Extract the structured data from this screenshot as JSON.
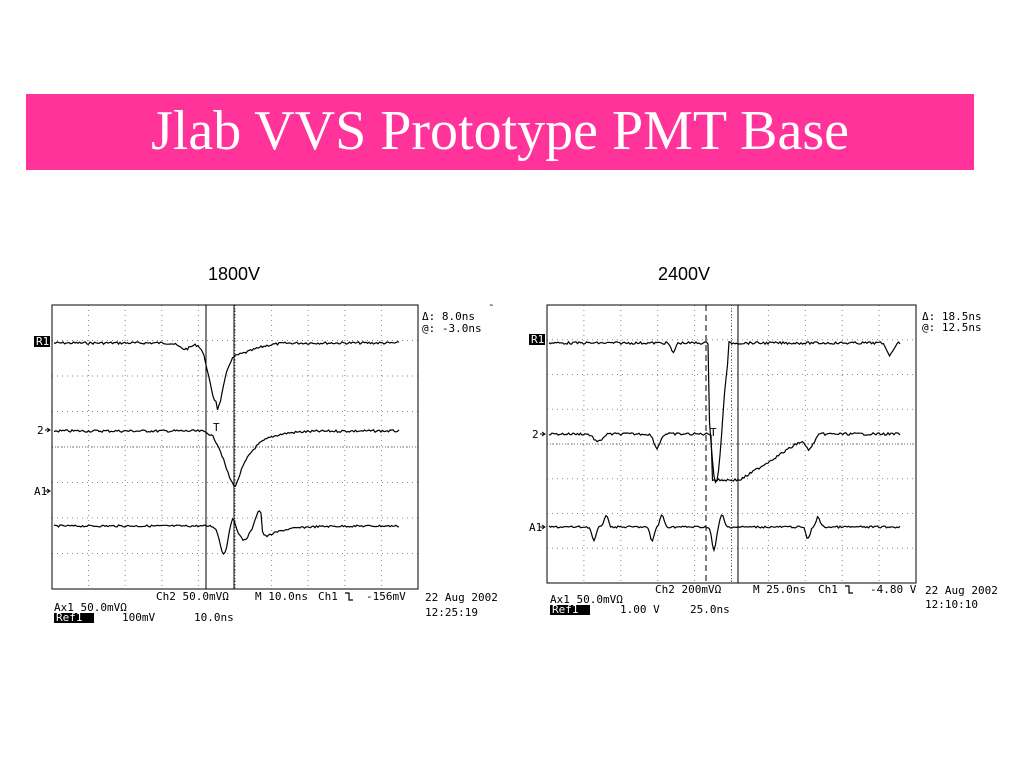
{
  "slide": {
    "title": "Jlab VVS Prototype PMT Base",
    "title_bg": "#ff3399"
  },
  "panels": [
    {
      "label": "1800V",
      "markers": {
        "r1": "R1",
        "ch2": "2",
        "a1": "A1"
      },
      "delta": "Δ: 8.0ns",
      "at": "@: -3.0ns",
      "ch2_setting": "Ch2  50.0mVΩ",
      "timebase": "M 10.0ns",
      "trigger_channel": "Ch1",
      "trigger_icon": "falling-edge-icon",
      "trigger_level": "-156mV",
      "ax1": "Ax1  50.0mVΩ",
      "ref_label": "Ref1",
      "ref_volts": "100mV",
      "ref_time": "10.0ns",
      "date": "22 Aug 2002",
      "time": "12:25:19",
      "extra_mark": "-"
    },
    {
      "label": "2400V",
      "markers": {
        "r1": "R1",
        "ch2": "2",
        "a1": "A1"
      },
      "delta": "Δ: 18.5ns",
      "at": "@: 12.5ns",
      "ch2_setting": "Ch2    200mVΩ",
      "timebase": "M 25.0ns",
      "trigger_channel": "Ch1",
      "trigger_icon": "falling-edge-icon",
      "trigger_level": "-4.80 V",
      "ax1": "Ax1  50.0mVΩ",
      "ref_label": "Ref1",
      "ref_volts": "1.00 V",
      "ref_time": "25.0ns",
      "date": "22 Aug 2002",
      "time": "12:10:10",
      "extra_mark": ""
    }
  ]
}
